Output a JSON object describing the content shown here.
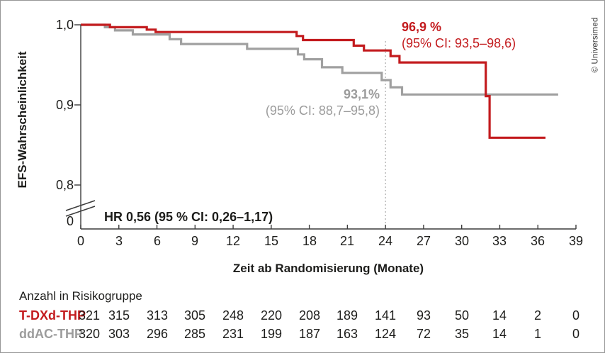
{
  "credit": "© Universimed",
  "chart_data": {
    "type": "line",
    "subtype": "kaplan-meier-step",
    "title": "",
    "xlabel": "Zeit ab Randomisierung (Monate)",
    "ylabel": "EFS-Wahrscheinlichkeit",
    "xlim": [
      0,
      39
    ],
    "xticks": [
      0,
      3,
      6,
      9,
      12,
      15,
      18,
      21,
      24,
      27,
      30,
      33,
      36,
      39
    ],
    "yticks": [
      {
        "value": 1.0,
        "label": "1,0"
      },
      {
        "value": 0.9,
        "label": "0,9"
      },
      {
        "value": 0.8,
        "label": "0,8"
      }
    ],
    "zero_tick_label": "0",
    "axis_break": true,
    "grid": false,
    "reference_line_x": 24,
    "series": [
      {
        "name": "ddAC-THP",
        "color": "#a0a0a0",
        "points": [
          [
            0,
            1.0
          ],
          [
            1.9,
            0.997
          ],
          [
            2.7,
            0.993
          ],
          [
            4.1,
            0.988
          ],
          [
            7.0,
            0.982
          ],
          [
            7.9,
            0.976
          ],
          [
            13.1,
            0.97
          ],
          [
            17.1,
            0.963
          ],
          [
            17.6,
            0.957
          ],
          [
            19.0,
            0.947
          ],
          [
            20.6,
            0.94
          ],
          [
            23.7,
            0.931
          ],
          [
            24.4,
            0.922
          ],
          [
            25.3,
            0.913
          ],
          [
            37.6,
            0.913
          ]
        ]
      },
      {
        "name": "T-DXd-THP",
        "color": "#c31b1e",
        "points": [
          [
            0,
            1.0
          ],
          [
            2.3,
            0.997
          ],
          [
            5.2,
            0.994
          ],
          [
            5.9,
            0.991
          ],
          [
            17.0,
            0.986
          ],
          [
            17.5,
            0.981
          ],
          [
            21.5,
            0.974
          ],
          [
            22.3,
            0.968
          ],
          [
            24.4,
            0.961
          ],
          [
            25.1,
            0.953
          ],
          [
            31.9,
            0.911
          ],
          [
            32.2,
            0.859
          ],
          [
            36.6,
            0.859
          ]
        ]
      }
    ],
    "annotations": [
      {
        "series": "T-DXd-THP",
        "value_label": "96,9 %",
        "ci_label": "(95% CI: 93,5–98,6)",
        "color": "#c31b1e"
      },
      {
        "series": "ddAC-THP",
        "value_label": "93,1%",
        "ci_label": "(95% CI: 88,7–95,8)",
        "color": "#9c9c9c"
      }
    ],
    "hr_label": "HR 0,56 (95 % CI: 0,26–1,17)"
  },
  "risk_table": {
    "header": "Anzahl in Risikogruppe",
    "timepoints": [
      0,
      3,
      6,
      9,
      12,
      15,
      18,
      21,
      24,
      27,
      30,
      33,
      36,
      39
    ],
    "rows": [
      {
        "label": "T-DXd-THP",
        "color": "#c31b1e",
        "values": [
          321,
          315,
          313,
          305,
          248,
          220,
          208,
          189,
          141,
          93,
          50,
          14,
          2,
          0
        ]
      },
      {
        "label": "ddAC-THP",
        "color": "#9c9c9c",
        "values": [
          320,
          303,
          296,
          285,
          231,
          199,
          187,
          163,
          124,
          72,
          35,
          14,
          1,
          0
        ]
      }
    ]
  }
}
